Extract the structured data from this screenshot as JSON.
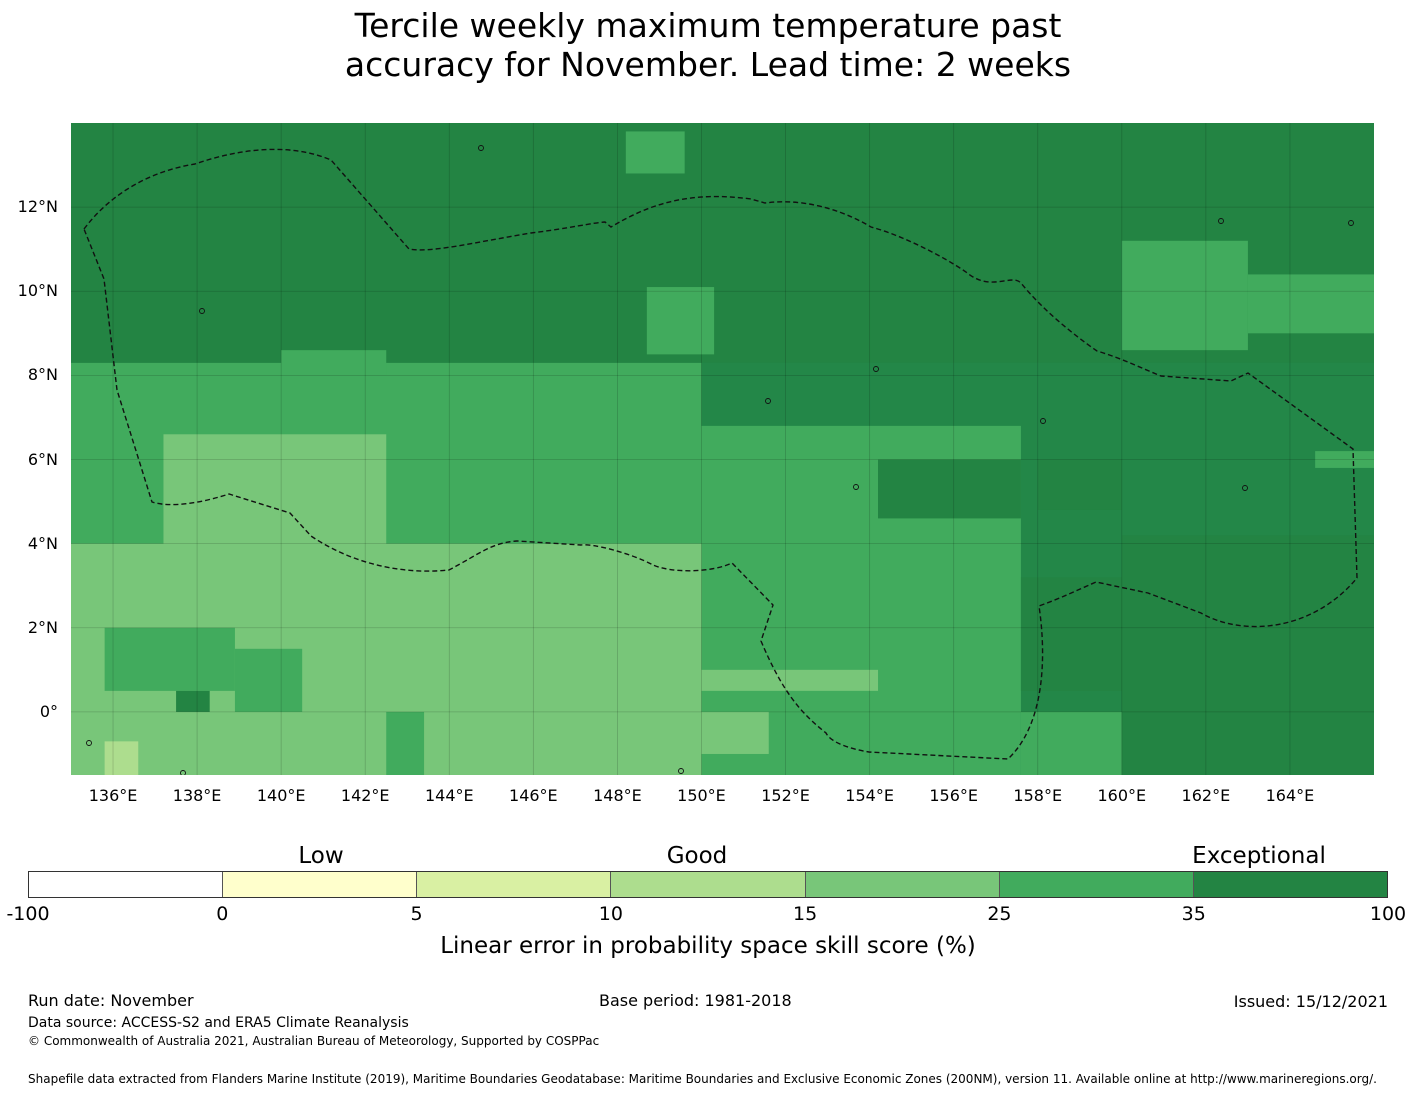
{
  "title_line1": "Tercile weekly maximum temperature past",
  "title_line2": "accuracy for November. Lead time: 2 weeks",
  "map": {
    "lon_range": [
      135.0,
      166.0
    ],
    "lat_range": [
      -1.5,
      14.0
    ],
    "lat_ticks": [
      {
        "value": 12,
        "label": "12°N"
      },
      {
        "value": 10,
        "label": "10°N"
      },
      {
        "value": 8,
        "label": "8°N"
      },
      {
        "value": 6,
        "label": "6°N"
      },
      {
        "value": 4,
        "label": "4°N"
      },
      {
        "value": 2,
        "label": "2°N"
      },
      {
        "value": 0,
        "label": "0°"
      }
    ],
    "lon_ticks": [
      {
        "value": 136,
        "label": "136°E"
      },
      {
        "value": 138,
        "label": "138°E"
      },
      {
        "value": 140,
        "label": "140°E"
      },
      {
        "value": 142,
        "label": "142°E"
      },
      {
        "value": 144,
        "label": "144°E"
      },
      {
        "value": 146,
        "label": "146°E"
      },
      {
        "value": 148,
        "label": "148°E"
      },
      {
        "value": 150,
        "label": "150°E"
      },
      {
        "value": 152,
        "label": "152°E"
      },
      {
        "value": 154,
        "label": "154°E"
      },
      {
        "value": 156,
        "label": "156°E"
      },
      {
        "value": 158,
        "label": "158°E"
      },
      {
        "value": 160,
        "label": "160°E"
      },
      {
        "value": 162,
        "label": "162°E"
      },
      {
        "value": 164,
        "label": "164°E"
      }
    ],
    "skill_zones": [
      {
        "class": "25-35",
        "lon": [
          135.0,
          150.0
        ],
        "lat": [
          -1.5,
          8.3
        ]
      },
      {
        "class": "25-35",
        "lon": [
          150.0,
          157.6
        ],
        "lat": [
          -1.5,
          6.8
        ]
      },
      {
        "class": "25-35",
        "lon": [
          157.6,
          166.0
        ],
        "lat": [
          -1.5,
          0.0
        ]
      },
      {
        "class": "15-25",
        "lon": [
          137.2,
          142.5
        ],
        "lat": [
          3.3,
          6.6
        ]
      },
      {
        "class": "15-25",
        "lon": [
          135.0,
          150.0
        ],
        "lat": [
          -1.5,
          4.0
        ]
      },
      {
        "class": "15-25",
        "lon": [
          150.0,
          154.2
        ],
        "lat": [
          0.5,
          1.0
        ]
      },
      {
        "class": "15-25",
        "lon": [
          150.0,
          151.6
        ],
        "lat": [
          -1.0,
          0.0
        ]
      },
      {
        "class": "25-35",
        "lon": [
          135.8,
          138.9
        ],
        "lat": [
          0.5,
          2.0
        ]
      },
      {
        "class": "25-35",
        "lon": [
          138.9,
          140.5
        ],
        "lat": [
          0.0,
          1.5
        ]
      },
      {
        "class": "25-35",
        "lon": [
          142.5,
          143.4
        ],
        "lat": [
          -1.5,
          0.0
        ]
      },
      {
        "class": "10-15",
        "lon": [
          135.8,
          136.6
        ],
        "lat": [
          -1.5,
          -0.7
        ]
      },
      {
        "class": "35-100",
        "lon": [
          137.5,
          138.3
        ],
        "lat": [
          -0.0,
          0.5
        ]
      },
      {
        "class": "35-100",
        "lon": [
          157.6,
          160.0
        ],
        "lat": [
          0.5,
          3.2
        ]
      },
      {
        "class": "35-100",
        "lon": [
          160.0,
          166.0
        ],
        "lat": [
          -1.5,
          4.2
        ]
      },
      {
        "class": "35-100",
        "lon": [
          135.0,
          166.0
        ],
        "lat": [
          8.3,
          14.0
        ]
      },
      {
        "class": "25-35",
        "lon": [
          148.7,
          150.3
        ],
        "lat": [
          8.5,
          10.1
        ]
      },
      {
        "class": "25-35",
        "lon": [
          140.0,
          142.5
        ],
        "lat": [
          8.0,
          8.6
        ]
      },
      {
        "class": "25-35",
        "lon": [
          148.2,
          149.6
        ],
        "lat": [
          12.8,
          13.8
        ]
      },
      {
        "class": "25-35",
        "lon": [
          160.0,
          163.0
        ],
        "lat": [
          8.6,
          11.2
        ]
      },
      {
        "class": "25-35",
        "lon": [
          163.0,
          166.0
        ],
        "lat": [
          9.0,
          10.4
        ]
      },
      {
        "class": "35-100",
        "lon": [
          154.2,
          157.6
        ],
        "lat": [
          4.6,
          6.0
        ]
      },
      {
        "class": "35-100",
        "lon": [
          158.0,
          160.0
        ],
        "lat": [
          4.8,
          6.0
        ]
      },
      {
        "class": "25-35",
        "lon": [
          164.6,
          166.0
        ],
        "lat": [
          5.8,
          6.2
        ]
      }
    ],
    "skill_colors": {
      "-100-0": "#ffffff",
      "0-5": "#ffffcc",
      "5-10": "#d9f0a3",
      "10-15": "#addd8e",
      "15-25": "#78c679",
      "25-35": "#41ab5d",
      "35-100": "#238443"
    }
  },
  "colorbar": {
    "category_labels": [
      "Low",
      "Good",
      "Exceptional"
    ],
    "ticks": [
      "-100",
      "0",
      "5",
      "10",
      "15",
      "25",
      "35",
      "100"
    ],
    "colors": [
      "#ffffff",
      "#ffffcc",
      "#d9f0a3",
      "#addd8e",
      "#78c679",
      "#41ab5d",
      "#238443"
    ],
    "label": "Linear error in probability space skill score (%)"
  },
  "footer": {
    "run_date": "Run date: November",
    "base_period": "Base period: 1981-2018",
    "issued": "Issued: 15/12/2021",
    "data_source": "Data source: ACCESS-S2 and ERA5 Climate Reanalysis",
    "copyright": "© Commonwealth of Australia 2021, Australian Bureau of Meteorology, Supported by COSPPac",
    "shapefile": "Shapefile data extracted from Flanders Marine Institute (2019), Maritime Boundaries Geodatabase: Maritime Boundaries and Exclusive Economic Zones (200NM), version 11. Available online at http://www.marineregions.org/."
  }
}
